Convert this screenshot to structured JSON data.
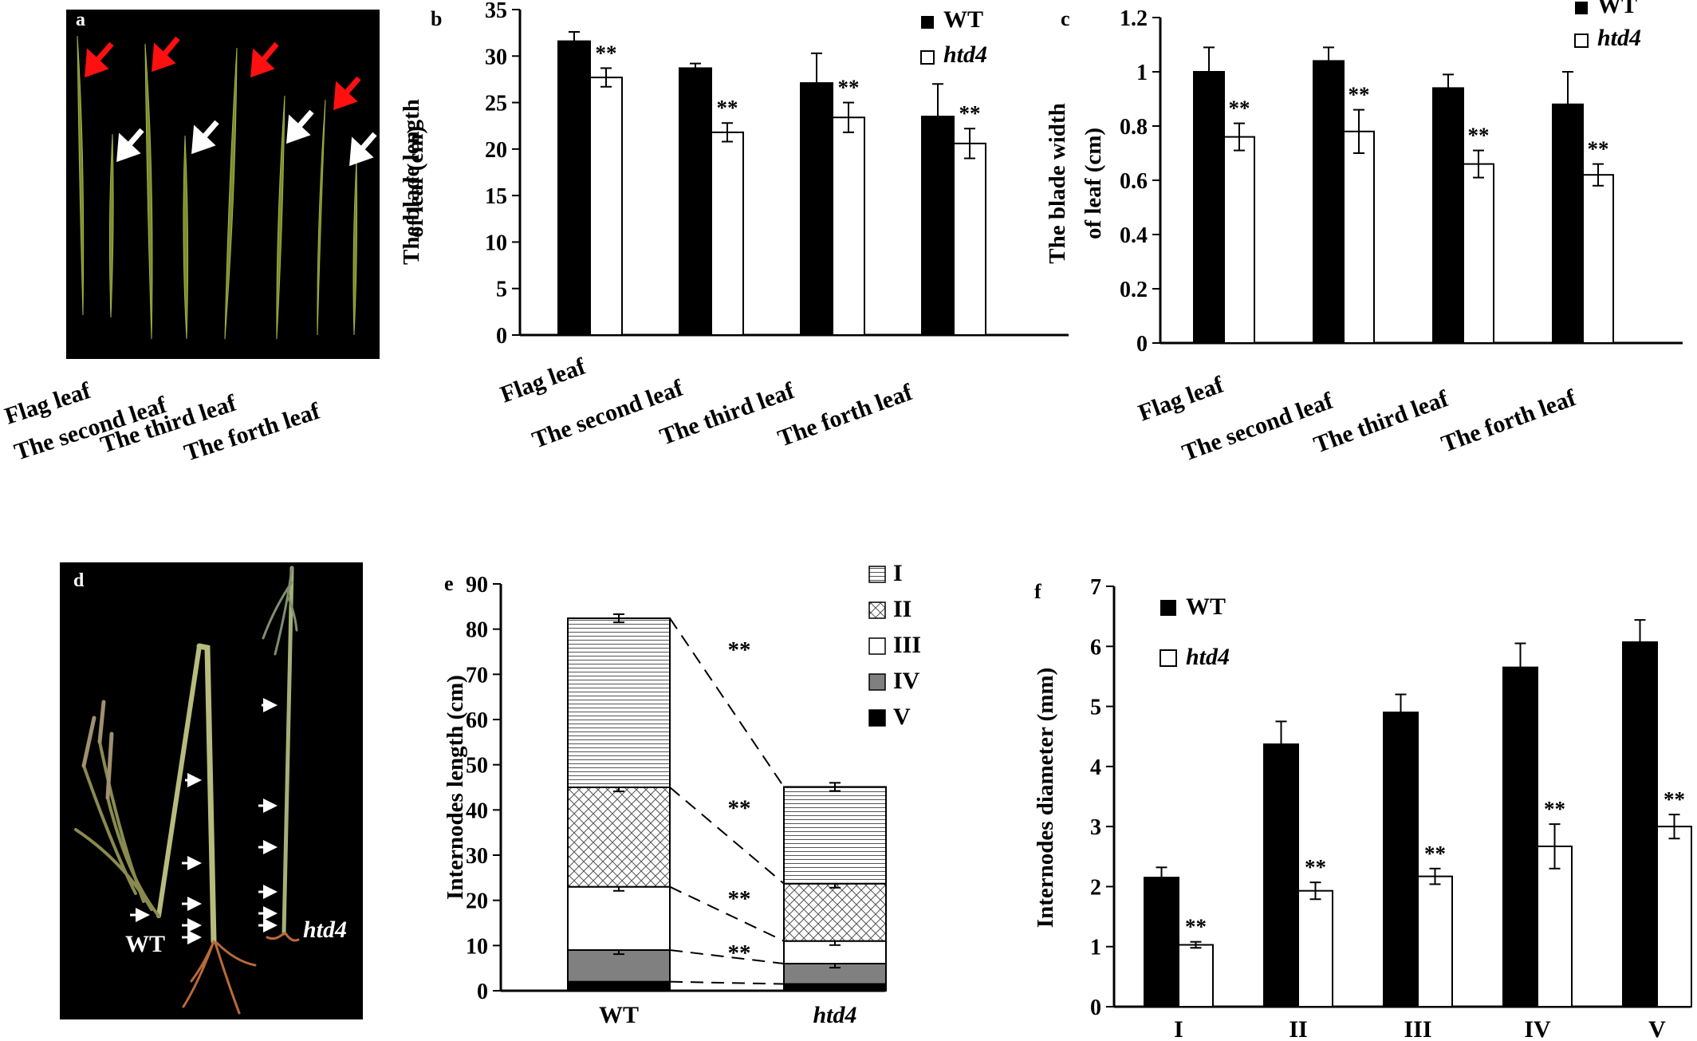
{
  "panels": {
    "a": {
      "letter": "a",
      "leaf_labels": [
        "Flag leaf",
        "The second leaf",
        "The third leaf",
        "The forth leaf"
      ]
    },
    "d": {
      "letter": "d",
      "wt_label": "WT",
      "mutant_label": "htd4"
    }
  },
  "colors": {
    "wt": "#000000",
    "mutant": "#ffffff",
    "photo_background": "#000000",
    "red_arrow": "#ff1010"
  },
  "chart_data": [
    {
      "id": "b",
      "letter": "b",
      "type": "bar",
      "ylabel_lines": [
        "The blade length",
        "of leaf (cm)"
      ],
      "ylim": [
        0,
        35
      ],
      "yticks": [
        0,
        5,
        10,
        15,
        20,
        25,
        30,
        35
      ],
      "categories": [
        "Flag leaf",
        "The second leaf",
        "The third leaf",
        "The forth leaf"
      ],
      "series": [
        {
          "name": "WT",
          "values": [
            31.6,
            28.7,
            27.1,
            23.5
          ],
          "errors": [
            1.0,
            0.5,
            3.2,
            3.5
          ]
        },
        {
          "name": "htd4",
          "values": [
            27.7,
            21.8,
            23.4,
            20.6
          ],
          "errors": [
            1.0,
            1.0,
            1.6,
            1.6
          ]
        }
      ],
      "significance": [
        "**",
        "**",
        "**",
        "**"
      ],
      "legend_position": "top-right"
    },
    {
      "id": "c",
      "letter": "c",
      "type": "bar",
      "ylabel_lines": [
        "The blade width",
        "of leaf (cm)"
      ],
      "ylim": [
        0,
        1.2
      ],
      "yticks": [
        "0",
        "0.2",
        "0.4",
        "0.6",
        "0.8",
        "1",
        "1.2"
      ],
      "categories": [
        "Flag leaf",
        "The second leaf",
        "The third leaf",
        "The forth leaf"
      ],
      "series": [
        {
          "name": "WT",
          "values": [
            1.0,
            1.04,
            0.94,
            0.88
          ],
          "errors": [
            0.09,
            0.05,
            0.05,
            0.12
          ]
        },
        {
          "name": "htd4",
          "values": [
            0.76,
            0.78,
            0.66,
            0.62
          ],
          "errors": [
            0.05,
            0.08,
            0.05,
            0.04
          ]
        }
      ],
      "significance": [
        "**",
        "**",
        "**",
        "**"
      ],
      "legend_position": "top-right"
    },
    {
      "id": "e",
      "letter": "e",
      "type": "bar",
      "stacked": true,
      "ylabel": "Internodes length (cm)",
      "ylim": [
        0,
        90
      ],
      "yticks": [
        0,
        10,
        20,
        30,
        40,
        50,
        60,
        70,
        80,
        90
      ],
      "categories": [
        "WT",
        "htd4"
      ],
      "series": [
        {
          "name": "V",
          "values": [
            2.0,
            1.5
          ]
        },
        {
          "name": "IV",
          "values": [
            7.0,
            4.5
          ]
        },
        {
          "name": "III",
          "values": [
            14.0,
            5.0
          ]
        },
        {
          "name": "II",
          "values": [
            22.0,
            12.7
          ]
        },
        {
          "name": "I",
          "values": [
            37.4,
            21.4
          ]
        }
      ],
      "legend_order": [
        "I",
        "II",
        "III",
        "IV",
        "V"
      ],
      "significance": [
        "**",
        "**",
        "**",
        "**"
      ],
      "legend_position": "top-right"
    },
    {
      "id": "f",
      "letter": "f",
      "type": "bar",
      "ylabel": "Internodes diameter (mm)",
      "ylim": [
        0,
        7
      ],
      "yticks": [
        0,
        1,
        2,
        3,
        4,
        5,
        6,
        7
      ],
      "categories": [
        "I",
        "II",
        "III",
        "IV",
        "V"
      ],
      "series": [
        {
          "name": "WT",
          "values": [
            2.15,
            4.37,
            4.9,
            5.65,
            6.07
          ],
          "errors": [
            0.17,
            0.38,
            0.3,
            0.4,
            0.37
          ]
        },
        {
          "name": "htd4",
          "values": [
            1.03,
            1.93,
            2.17,
            2.67,
            3.0
          ],
          "errors": [
            0.05,
            0.14,
            0.13,
            0.37,
            0.2
          ]
        }
      ],
      "significance": [
        "**",
        "**",
        "**",
        "**",
        "**"
      ],
      "legend_position": "top-left"
    }
  ]
}
